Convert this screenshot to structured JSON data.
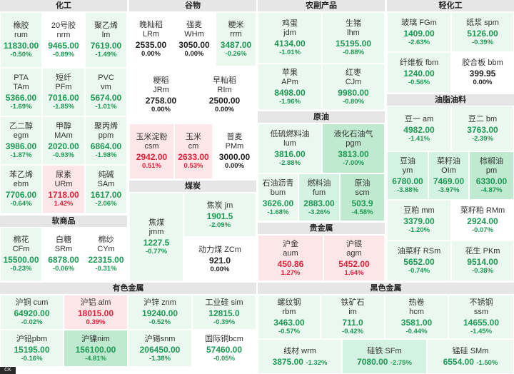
{
  "sections": {
    "chem": "化工",
    "grain": "谷物",
    "farm": "农副产品",
    "light": "轻化工",
    "oil": "原油",
    "fats": "油脂油料",
    "coal": "煤炭",
    "soft": "软商品",
    "precious": "贵金属",
    "nonferrous": "有色金属",
    "ferrous": "黑色金属"
  },
  "cells": {
    "rum": {
      "n1": "橡胶",
      "n2": "rum",
      "p": "11830.00",
      "c": "-0.50%"
    },
    "nrm": {
      "n1": "20号胶",
      "n2": "nrm",
      "p": "9465.00",
      "c": "-0.89%"
    },
    "lm": {
      "n1": "聚乙烯",
      "n2": "lm",
      "p": "7619.00",
      "c": "-1.49%"
    },
    "tam": {
      "n1": "PTA",
      "n2": "TAm",
      "p": "5366.00",
      "c": "-1.69%"
    },
    "pfm": {
      "n1": "短纤",
      "n2": "PFm",
      "p": "7016.00",
      "c": "-1.85%"
    },
    "vm": {
      "n1": "PVC",
      "n2": "vm",
      "p": "5674.00",
      "c": "-1.01%"
    },
    "egm": {
      "n1": "乙二醇",
      "n2": "egm",
      "p": "3986.00",
      "c": "-1.87%"
    },
    "mam": {
      "n1": "甲醇",
      "n2": "MAm",
      "p": "2020.00",
      "c": "-0.93%"
    },
    "ppm": {
      "n1": "聚丙烯",
      "n2": "ppm",
      "p": "6864.00",
      "c": "-1.98%"
    },
    "ebm": {
      "n1": "苯乙烯",
      "n2": "ebm",
      "p": "7706.00",
      "c": "-0.64%"
    },
    "urm": {
      "n1": "尿素",
      "n2": "URm",
      "p": "1718.00",
      "c": "1.42%"
    },
    "sam": {
      "n1": "纯碱",
      "n2": "SAm",
      "p": "1617.00",
      "c": "-2.06%"
    },
    "lrm": {
      "n1": "晚籼稻",
      "n2": "LRm",
      "p": "2535.00",
      "c": "0.00%"
    },
    "whm": {
      "n1": "强麦",
      "n2": "WHm",
      "p": "3050.00",
      "c": "0.00%"
    },
    "rrm": {
      "n1": "粳米",
      "n2": "rrm",
      "p": "3487.00",
      "c": "-0.26%"
    },
    "jrm": {
      "n1": "粳稻",
      "n2": "JRm",
      "p": "2758.00",
      "c": "0.00%"
    },
    "rim": {
      "n1": "早籼稻",
      "n2": "RIm",
      "p": "2500.00",
      "c": "0.00%"
    },
    "csm": {
      "n1": "玉米淀粉",
      "n2": "csm",
      "p": "2942.00",
      "c": "0.51%"
    },
    "cm": {
      "n1": "玉米",
      "n2": "cm",
      "p": "2633.00",
      "c": "0.53%"
    },
    "pmm": {
      "n1": "普麦",
      "n2": "PMm",
      "p": "3000.00",
      "c": "0.00%"
    },
    "jdm": {
      "n1": "鸡蛋",
      "n2": "jdm",
      "p": "4134.00",
      "c": "-1.01%"
    },
    "lhm": {
      "n1": "生猪",
      "n2": "lhm",
      "p": "15195.00",
      "c": "-0.88%"
    },
    "apm": {
      "n1": "苹果",
      "n2": "APm",
      "p": "8498.00",
      "c": "-1.96%"
    },
    "cjm": {
      "n1": "红枣",
      "n2": "CJm",
      "p": "9980.00",
      "c": "-0.80%"
    },
    "fgm": {
      "n1": "玻璃",
      "n2": "FGm",
      "p": "1409.00",
      "c": "-2.63%"
    },
    "spm": {
      "n1": "纸浆",
      "n2": "spm",
      "p": "5126.00",
      "c": "-0.39%"
    },
    "fbm": {
      "n1": "纤维板",
      "n2": "fbm",
      "p": "1240.00",
      "c": "-0.56%"
    },
    "bbm": {
      "n1": "胶合板",
      "n2": "bbm",
      "p": "399.95",
      "c": "0.00%"
    },
    "lum": {
      "n1": "低硫燃料油",
      "n2": "lum",
      "p": "3816.00",
      "c": "-2.88%"
    },
    "pgm": {
      "n1": "液化石油气",
      "n2": "pgm",
      "p": "3813.00",
      "c": "-7.00%"
    },
    "bum": {
      "n1": "石油沥青",
      "n2": "bum",
      "p": "3626.00",
      "c": "-1.68%"
    },
    "fum": {
      "n1": "燃料油",
      "n2": "fum",
      "p": "2883.00",
      "c": "-3.26%"
    },
    "scm": {
      "n1": "原油",
      "n2": "scm",
      "p": "503.9",
      "c": "-4.58%"
    },
    "am": {
      "n1": "豆一",
      "n2": "am",
      "p": "4982.00",
      "c": "-1.41%"
    },
    "bm": {
      "n1": "豆二",
      "n2": "bm",
      "p": "3763.00",
      "c": "-2.39%"
    },
    "ym": {
      "n1": "豆油",
      "n2": "ym",
      "p": "6780.00",
      "c": "-3.88%"
    },
    "oim": {
      "n1": "菜籽油",
      "n2": "OIm",
      "p": "7469.00",
      "c": "-3.97%"
    },
    "pm": {
      "n1": "棕榈油",
      "n2": "pm",
      "p": "6330.00",
      "c": "-4.87%"
    },
    "mm": {
      "n1": "豆粕",
      "n2": "mm",
      "p": "3379.00",
      "c": "-1.20%"
    },
    "rmm": {
      "n1": "菜籽粕",
      "n2": "RMm",
      "p": "2924.00",
      "c": "-0.07%"
    },
    "rsm": {
      "n1": "油菜籽",
      "n2": "RSm",
      "p": "5652.00",
      "c": "-0.74%"
    },
    "pkm": {
      "n1": "花生",
      "n2": "PKm",
      "p": "9514.00",
      "c": "-0.38%"
    },
    "jmm": {
      "n1": "焦煤",
      "n2": "jmm",
      "p": "1227.5",
      "c": "-0.77%"
    },
    "jm": {
      "n1": "焦炭",
      "n2": "jm",
      "p": "1901.5",
      "c": "-2.09%"
    },
    "zcm": {
      "n1": "动力煤",
      "n2": "ZCm",
      "p": "921.0",
      "c": "0.00%"
    },
    "cfm": {
      "n1": "棉花",
      "n2": "CFm",
      "p": "15500.00",
      "c": "-0.23%"
    },
    "srm": {
      "n1": "白糖",
      "n2": "SRm",
      "p": "6878.00",
      "c": "-0.06%"
    },
    "cym": {
      "n1": "棉纱",
      "n2": "CYm",
      "p": "22315.00",
      "c": "-0.31%"
    },
    "aum": {
      "n1": "沪金",
      "n2": "aum",
      "p": "450.86",
      "c": "1.27%"
    },
    "agm": {
      "n1": "沪银",
      "n2": "agm",
      "p": "5452.00",
      "c": "1.64%"
    },
    "cum": {
      "n1": "沪铜",
      "n2": "cum",
      "p": "64920.00",
      "c": "-0.02%"
    },
    "alm": {
      "n1": "沪铝",
      "n2": "alm",
      "p": "18015.00",
      "c": "0.39%"
    },
    "znm": {
      "n1": "沪锌",
      "n2": "znm",
      "p": "19240.00",
      "c": "-0.52%"
    },
    "sim": {
      "n1": "工业硅",
      "n2": "sim",
      "p": "12815.0",
      "c": "-0.39%"
    },
    "pbm": {
      "n1": "沪铅",
      "n2": "pbm",
      "p": "15195.00",
      "c": "-0.16%"
    },
    "nim": {
      "n1": "沪镍",
      "n2": "nim",
      "p": "156100.00",
      "c": "-4.81%"
    },
    "snm": {
      "n1": "沪锡",
      "n2": "snm",
      "p": "206450.00",
      "c": "-1.38%"
    },
    "bcm": {
      "n1": "国际铜",
      "n2": "bcm",
      "p": "57460.00",
      "c": "-0.05%"
    },
    "rbm": {
      "n1": "螺纹钢",
      "n2": "rbm",
      "p": "3463.00",
      "c": "-0.57%"
    },
    "im": {
      "n1": "铁矿石",
      "n2": "im",
      "p": "711.0",
      "c": "-0.42%"
    },
    "hcm": {
      "n1": "热卷",
      "n2": "hcm",
      "p": "3581.00",
      "c": "-0.44%"
    },
    "ssm": {
      "n1": "不锈钢",
      "n2": "ssm",
      "p": "14655.00",
      "c": "-1.45%"
    },
    "wrm": {
      "n1": "线材",
      "n2": "wrm",
      "p": "3875.00",
      "c": "-1.32%"
    },
    "sfm": {
      "n1": "硅铁",
      "n2": "SFm",
      "p": "7080.00",
      "c": "-2.75%"
    },
    "smm": {
      "n1": "锰硅",
      "n2": "SMm",
      "p": "6554.00",
      "c": "-1.50%"
    }
  },
  "footer": {
    "tip": "CK"
  },
  "colors": {
    "up": "#e0213a",
    "down": "#1f9a55",
    "flat": "#222222",
    "header_bg": "#e6e6e6"
  }
}
